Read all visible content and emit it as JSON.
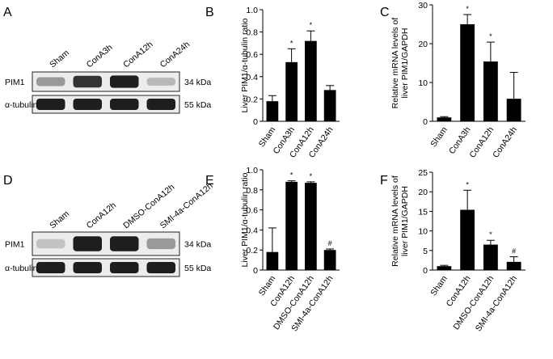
{
  "panels": {
    "A": "A",
    "B": "B",
    "C": "C",
    "D": "D",
    "E": "E",
    "F": "F"
  },
  "blots": {
    "A": {
      "lanes": [
        "Sham",
        "ConA3h",
        "ConA12h",
        "ConA24h"
      ],
      "rows": [
        {
          "name": "PIM1",
          "kda": "34 kDa",
          "intensity": [
            0.35,
            0.85,
            0.95,
            0.2
          ]
        },
        {
          "name": "α-tubulin",
          "kda": "55 kDa",
          "intensity": [
            0.95,
            0.95,
            0.95,
            0.95
          ]
        }
      ]
    },
    "D": {
      "lanes": [
        "Sham",
        "ConA12h",
        "DMSO-ConA12h",
        "SMI-4a-ConA12h"
      ],
      "rows": [
        {
          "name": "PIM1",
          "kda": "34 kDa",
          "intensity": [
            0.15,
            0.95,
            0.95,
            0.35
          ]
        },
        {
          "name": "α-tubulin",
          "kda": "55 kDa",
          "intensity": [
            0.95,
            0.95,
            0.95,
            0.95
          ]
        }
      ]
    }
  },
  "chart_data": [
    {
      "panel": "B",
      "type": "bar",
      "categories": [
        "Sham",
        "ConA3h",
        "ConA12h",
        "ConA24h"
      ],
      "values": [
        0.18,
        0.53,
        0.72,
        0.28
      ],
      "errors": [
        0.05,
        0.12,
        0.09,
        0.04
      ],
      "annotations": [
        "",
        "*",
        "*",
        ""
      ],
      "ylabel": "Liver PIM1/α-tubulin ratio",
      "ylim": [
        0,
        1.0
      ],
      "yticks": [
        "0",
        "0.2",
        "0.4",
        "0.6",
        "0.8",
        "1.0"
      ]
    },
    {
      "panel": "C",
      "type": "bar",
      "categories": [
        "Sham",
        "ConA3h",
        "ConA12h",
        "ConA24h"
      ],
      "values": [
        1.0,
        25.0,
        15.4,
        5.8
      ],
      "errors": [
        0.2,
        2.5,
        5.0,
        6.8
      ],
      "annotations": [
        "",
        "*",
        "*",
        ""
      ],
      "ylabel": [
        "Relative mRNA levels of",
        "liver PIM1/GAPDH"
      ],
      "ylim": [
        0,
        30
      ],
      "yticks": [
        "0",
        "10",
        "20",
        "30"
      ]
    },
    {
      "panel": "E",
      "type": "bar",
      "categories": [
        "Sham",
        "ConA12h",
        "DMSO-ConA12h",
        "SMI-4a-ConA12h"
      ],
      "values": [
        0.18,
        0.88,
        0.87,
        0.2
      ],
      "errors": [
        0.24,
        0.01,
        0.01,
        0.01
      ],
      "annotations": [
        "",
        "*",
        "*",
        "#"
      ],
      "ylabel": "Liver PIM1/α-tubulin ratio",
      "ylim": [
        0,
        1.0
      ],
      "yticks": [
        "0",
        "0.2",
        "0.4",
        "0.6",
        "0.8",
        "1.0"
      ]
    },
    {
      "panel": "F",
      "type": "bar",
      "categories": [
        "Sham",
        "ConA12h",
        "DMSO-ConA12h",
        "SMI-4a-ConA12h"
      ],
      "values": [
        1.0,
        15.4,
        6.5,
        2.1
      ],
      "errors": [
        0.2,
        5.0,
        1.1,
        1.3
      ],
      "annotations": [
        "",
        "*",
        "*",
        "#"
      ],
      "ylabel": [
        "Relative mRNA levels of",
        "liver PIM1/GAPDH"
      ],
      "ylim": [
        0,
        25
      ],
      "yticks": [
        "0",
        "5",
        "10",
        "15",
        "20",
        "25"
      ]
    }
  ]
}
